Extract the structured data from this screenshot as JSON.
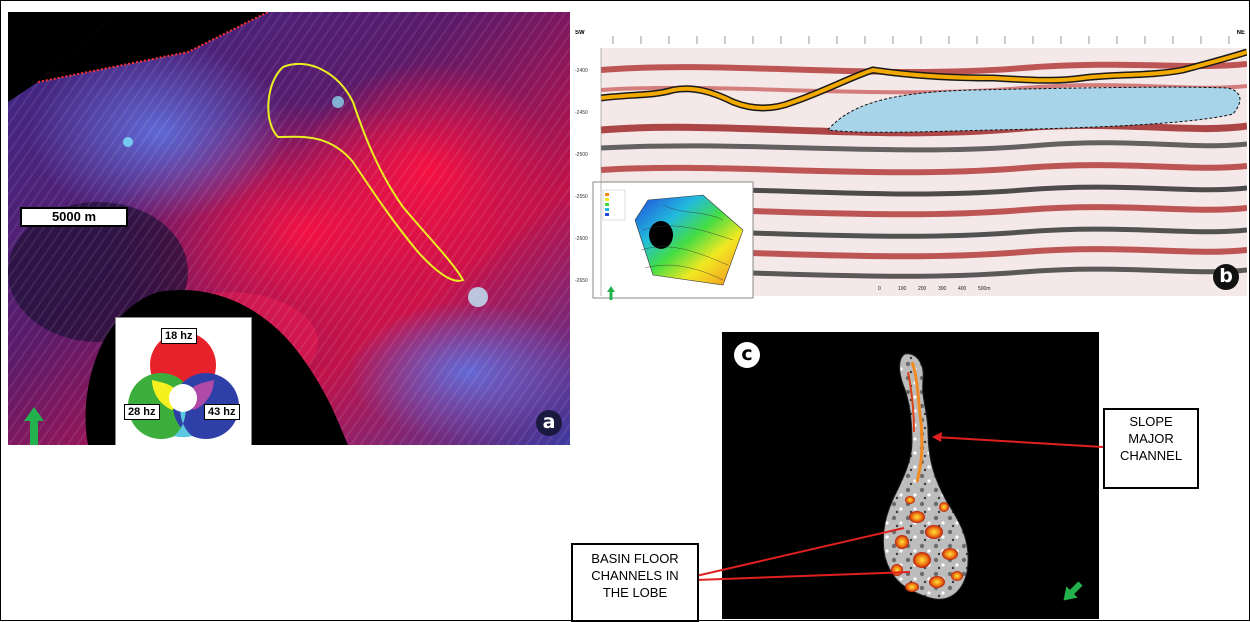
{
  "panel_a": {
    "badge": "a",
    "scale_bar": "5000 m",
    "legend": {
      "red": "18 hz",
      "green": "28 hz",
      "blue": "43 hz"
    }
  },
  "panel_b": {
    "badge": "b",
    "left_code": "SW",
    "right_code": "NE",
    "depth_ticks": [
      "-2400",
      "-2450",
      "-2500",
      "-2550",
      "-2600",
      "-2650"
    ],
    "distance_scale": [
      "0",
      "100",
      "200",
      "300",
      "400",
      "500m"
    ]
  },
  "panel_c": {
    "badge": "c",
    "callout_slope": [
      "SLOPE",
      "MAJOR",
      "CHANNEL"
    ],
    "callout_basin": [
      "BASIN FLOOR",
      "CHANNELS IN",
      "THE LOBE"
    ]
  },
  "colors": {
    "badge_bg": "#111111",
    "arrow_green": "#22b14c",
    "horizon": "#f2a900",
    "lobe_fill": "#a8d4ea",
    "callout_line": "#e02020"
  }
}
